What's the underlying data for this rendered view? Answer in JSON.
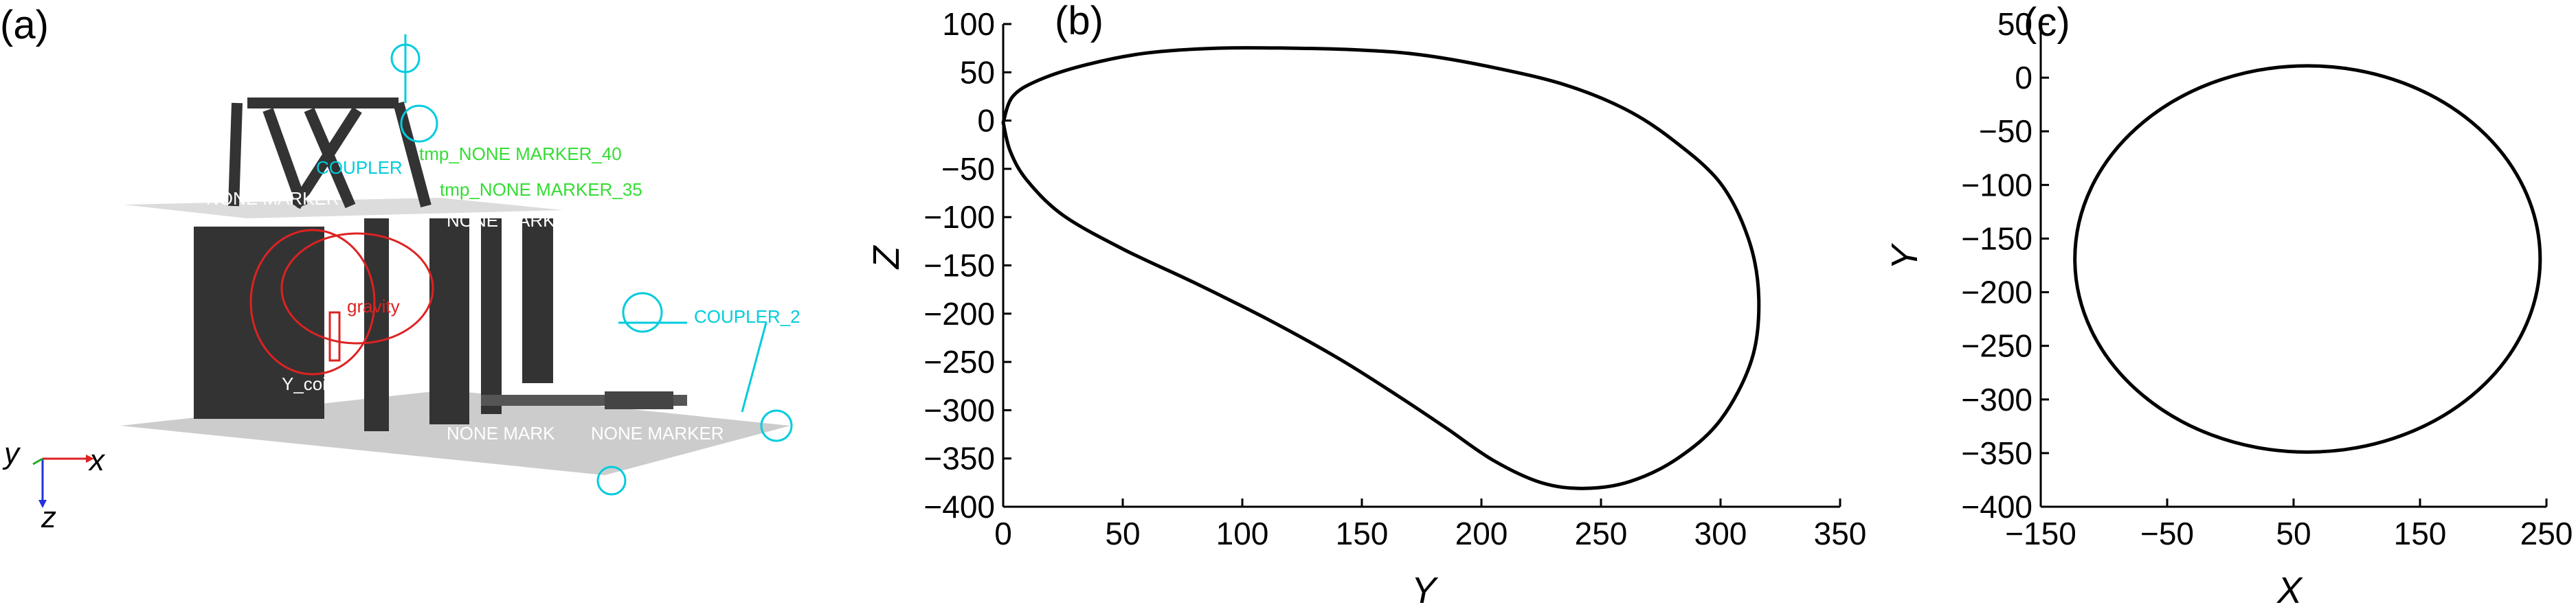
{
  "panels": {
    "a": {
      "label": "(a)"
    },
    "b": {
      "label": "(b)"
    },
    "c": {
      "label": "(c)"
    }
  },
  "model_view": {
    "axis_y": "y",
    "axis_x": "x",
    "axis_z": "z",
    "texts": [
      {
        "text": "tmp_NONE MARKER_40",
        "color": "#33dd33"
      },
      {
        "text": "tmp_NONE MARKER_35",
        "color": "#33dd33"
      },
      {
        "text": "COUPLER",
        "color": "#00ccdd"
      },
      {
        "text": "NONE MARKER",
        "color": "#ffffff"
      },
      {
        "text": "NONE MARK",
        "color": "#ffffff"
      },
      {
        "text": "gravity",
        "color": "#dd2222"
      },
      {
        "text": "COUPLER_2",
        "color": "#00ccdd"
      },
      {
        "text": "Y_coil",
        "color": "#ffffff"
      },
      {
        "text": "NONE MARK",
        "color": "#ffffff"
      },
      {
        "text": "NONE MARKER",
        "color": "#ffffff"
      }
    ],
    "colors": {
      "structure": "#333333",
      "ground": "#cccccc",
      "markers": "#00ccdd",
      "gravity": "#dd2222",
      "labels_green": "#33dd33"
    }
  },
  "chart_data": [
    {
      "type": "line",
      "panel": "b",
      "xlabel": "Y",
      "ylabel": "Z",
      "xlim": [
        0,
        350
      ],
      "ylim": [
        -400,
        100
      ],
      "xticks": [
        0,
        50,
        100,
        150,
        200,
        250,
        300,
        350
      ],
      "yticks": [
        100,
        50,
        0,
        -50,
        -100,
        -150,
        -200,
        -250,
        -300,
        -350,
        -400
      ],
      "grid": false,
      "series": [
        {
          "closed": true,
          "color": "#000000",
          "points": [
            [
              0,
              -2
            ],
            [
              4,
              25
            ],
            [
              15,
              42
            ],
            [
              35,
              58
            ],
            [
              60,
              70
            ],
            [
              90,
              75
            ],
            [
              120,
              75
            ],
            [
              150,
              73
            ],
            [
              175,
              68
            ],
            [
              205,
              55
            ],
            [
              235,
              37
            ],
            [
              260,
              12
            ],
            [
              280,
              -20
            ],
            [
              300,
              -65
            ],
            [
              312,
              -125
            ],
            [
              316,
              -185
            ],
            [
              313,
              -248
            ],
            [
              300,
              -310
            ],
            [
              282,
              -350
            ],
            [
              262,
              -374
            ],
            [
              243,
              -381
            ],
            [
              225,
              -375
            ],
            [
              205,
              -352
            ],
            [
              185,
              -318
            ],
            [
              165,
              -285
            ],
            [
              140,
              -246
            ],
            [
              110,
              -205
            ],
            [
              80,
              -168
            ],
            [
              50,
              -133
            ],
            [
              25,
              -98
            ],
            [
              10,
              -62
            ],
            [
              3,
              -32
            ],
            [
              0,
              -2
            ]
          ]
        }
      ]
    },
    {
      "type": "line",
      "panel": "c",
      "xlabel": "X",
      "ylabel": "Y",
      "xlim": [
        -150,
        250
      ],
      "ylim": [
        -400,
        50
      ],
      "xticks": [
        -150,
        -50,
        50,
        150,
        250
      ],
      "yticks": [
        50,
        0,
        -50,
        -100,
        -150,
        -200,
        -250,
        -300,
        -350,
        -400
      ],
      "grid": false,
      "series": [
        {
          "closed": true,
          "color": "#000000",
          "ellipse": {
            "cx": 61,
            "cy": -169,
            "rx": 184,
            "ry": 180
          }
        }
      ]
    }
  ]
}
